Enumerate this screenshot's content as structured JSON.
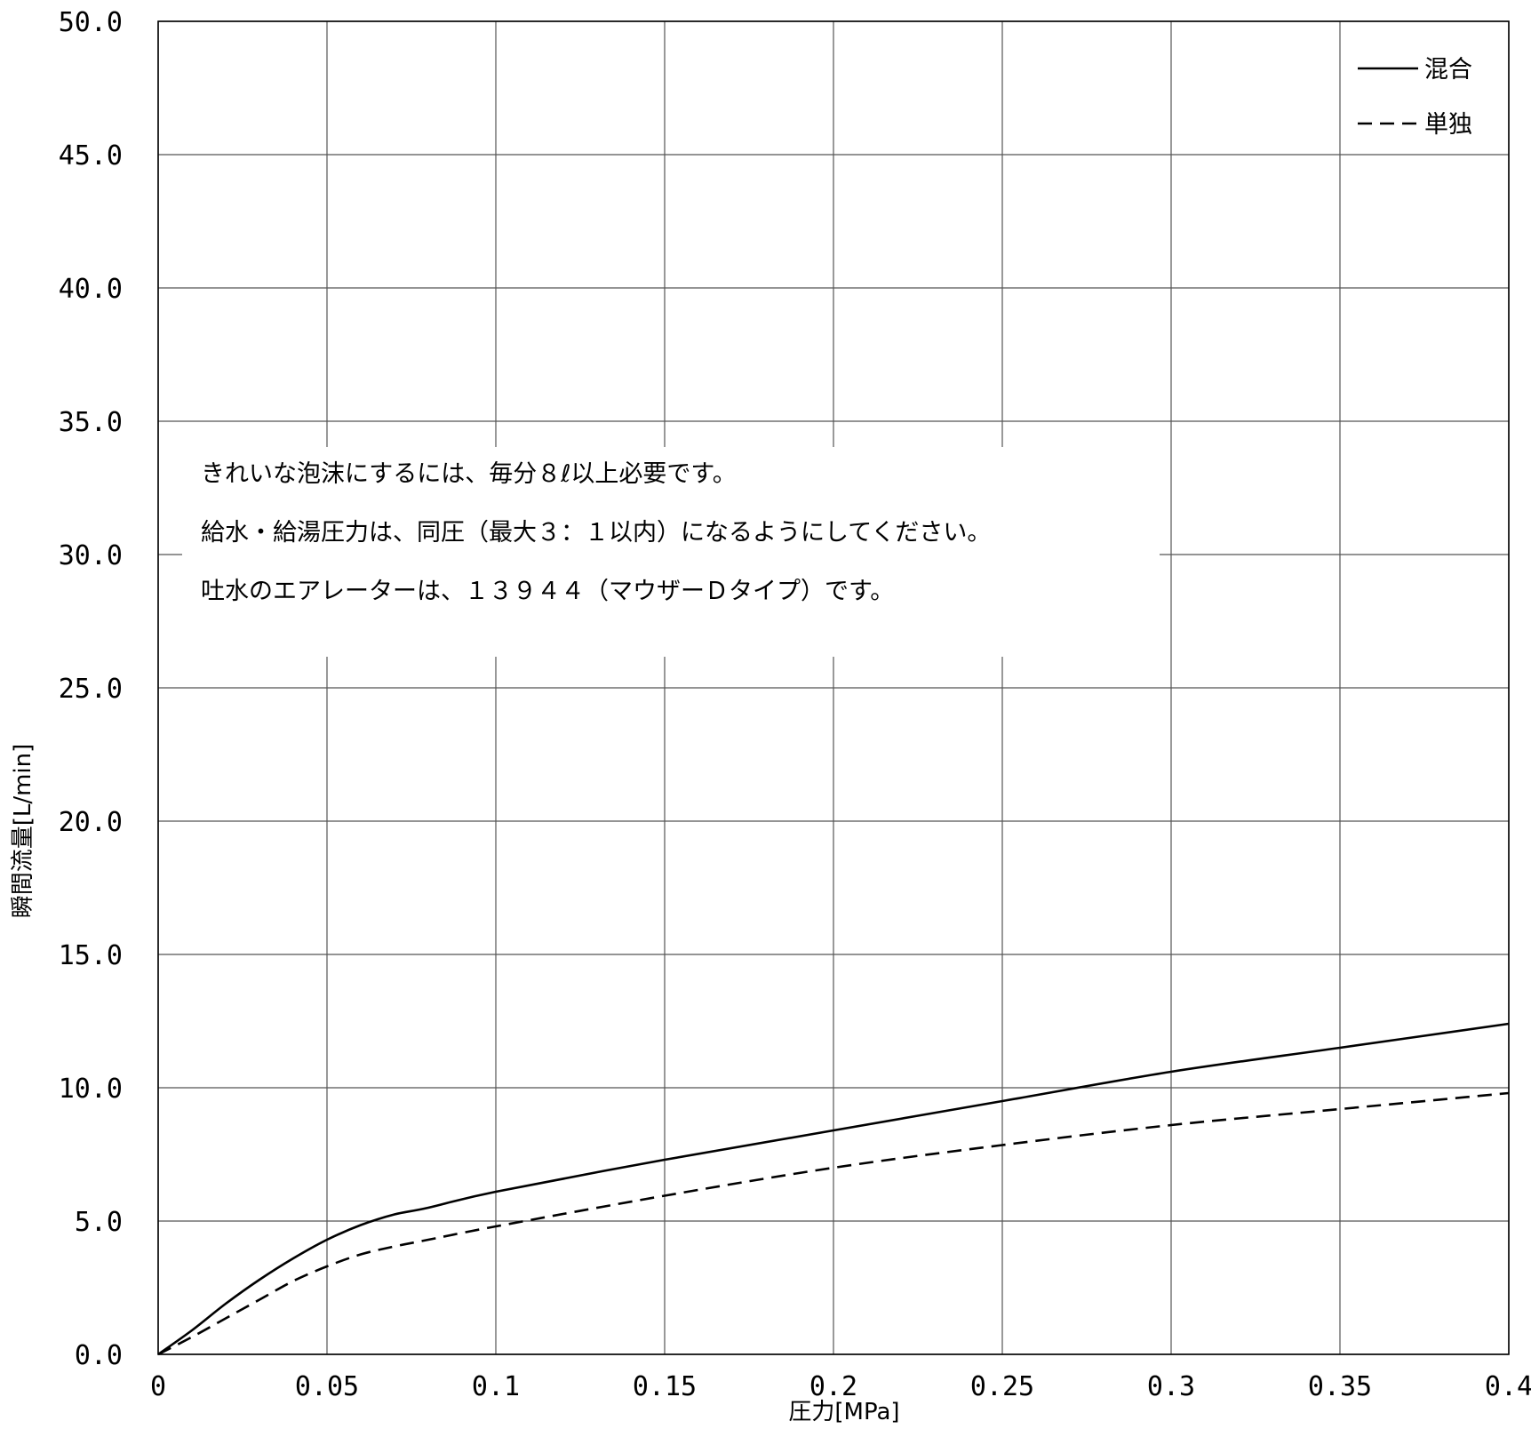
{
  "chart_data": {
    "type": "line",
    "title": "",
    "xlabel": "圧力[MPa]",
    "ylabel": "瞬間流量[L/min]",
    "xlim": [
      0,
      0.4
    ],
    "ylim": [
      0,
      50
    ],
    "x_ticks": [
      0,
      0.05,
      0.1,
      0.15,
      0.2,
      0.25,
      0.3,
      0.35,
      0.4
    ],
    "x_tick_labels": [
      "0",
      "0.05",
      "0.1",
      "0.15",
      "0.2",
      "0.25",
      "0.3",
      "0.35",
      "0.4"
    ],
    "y_ticks": [
      0,
      5,
      10,
      15,
      20,
      25,
      30,
      35,
      40,
      45,
      50
    ],
    "y_tick_labels": [
      "0.0",
      "5.0",
      "10.0",
      "15.0",
      "20.0",
      "25.0",
      "30.0",
      "35.0",
      "40.0",
      "45.0",
      "50.0"
    ],
    "grid": true,
    "legend_position": "top-right",
    "series": [
      {
        "name": "混合",
        "style": "solid",
        "color": "#000000",
        "x": [
          0,
          0.01,
          0.02,
          0.03,
          0.04,
          0.05,
          0.06,
          0.07,
          0.08,
          0.1,
          0.15,
          0.2,
          0.25,
          0.3,
          0.35,
          0.4
        ],
        "y": [
          0,
          0.9,
          1.9,
          2.8,
          3.6,
          4.3,
          4.85,
          5.25,
          5.5,
          6.1,
          7.3,
          8.4,
          9.5,
          10.6,
          11.5,
          12.4
        ]
      },
      {
        "name": "単独",
        "style": "dashed",
        "color": "#000000",
        "x": [
          0,
          0.01,
          0.02,
          0.03,
          0.04,
          0.05,
          0.06,
          0.07,
          0.08,
          0.1,
          0.15,
          0.2,
          0.25,
          0.3,
          0.35,
          0.4
        ],
        "y": [
          0,
          0.65,
          1.35,
          2.05,
          2.75,
          3.3,
          3.75,
          4.05,
          4.3,
          4.8,
          5.95,
          7.0,
          7.85,
          8.6,
          9.2,
          9.8
        ]
      }
    ],
    "annotations": [
      "きれいな泡沫にするには、毎分８ℓ以上必要です。",
      "給水・給湯圧力は、同圧（最大３：１以内）になるようにしてください。",
      "吐水のエアレーターは、１３９４４（マウザーＤタイプ）です。"
    ]
  }
}
